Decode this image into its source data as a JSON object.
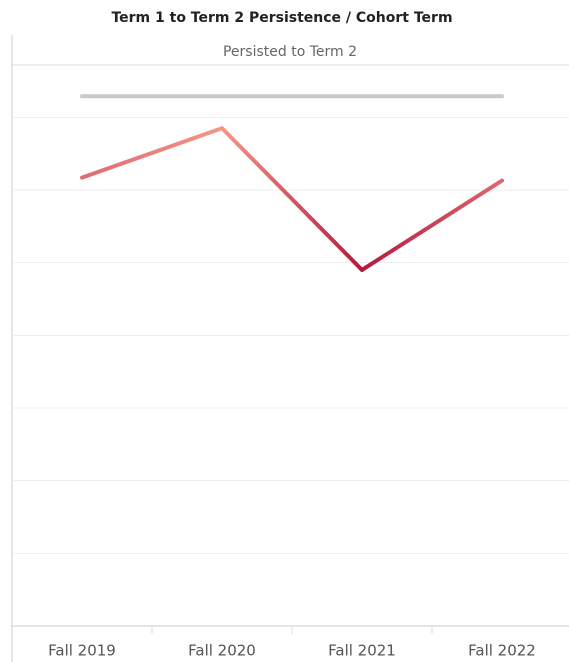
{
  "chart_data": {
    "type": "line",
    "title": "Term 1 to Term 2 Persistence  /  Cohort Term",
    "header": "Persisted to Term 2",
    "categories": [
      "Fall 2019",
      "Fall 2020",
      "Fall 2021",
      "Fall 2022"
    ],
    "series": [
      {
        "name": "Persisted to Term 2",
        "color_scale": [
          "#b5193f",
          "#f4978a"
        ],
        "values": [
          6.17,
          6.85,
          4.9,
          6.13
        ]
      },
      {
        "color": "#c8c8c8",
        "values": [
          7.29,
          7.29,
          7.29,
          7.29
        ]
      }
    ],
    "ylim": [
      0,
      7.72
    ],
    "yticks": [
      1,
      2,
      3,
      4,
      5,
      6,
      7
    ],
    "grid": true
  }
}
